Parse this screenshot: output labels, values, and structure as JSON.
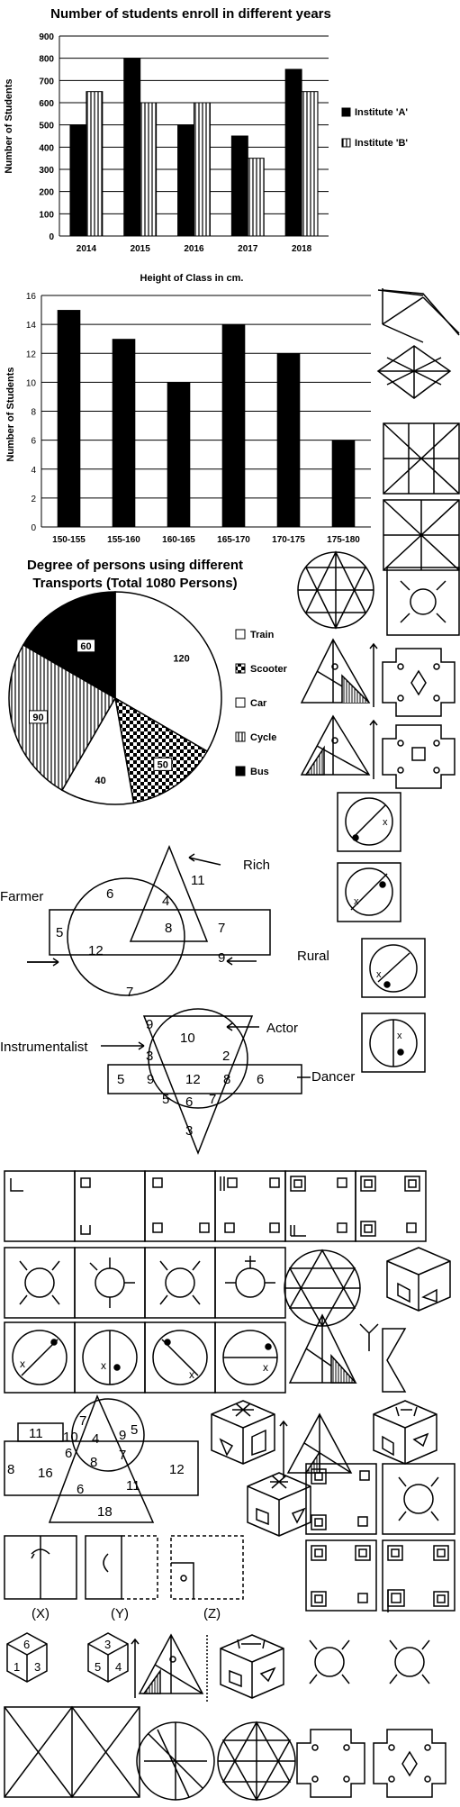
{
  "chart_data": [
    {
      "type": "bar",
      "title": "Number of students enroll in different years",
      "xlabel": "",
      "ylabel": "Number of Students",
      "categories": [
        "2014",
        "2015",
        "2016",
        "2017",
        "2018"
      ],
      "series": [
        {
          "name": "Institute 'A'",
          "values": [
            500,
            800,
            500,
            450,
            750
          ]
        },
        {
          "name": "Institute 'B'",
          "values": [
            650,
            600,
            600,
            350,
            650
          ]
        }
      ],
      "ylim": [
        0,
        900
      ],
      "yticks": [
        "0",
        "100",
        "200",
        "300",
        "400",
        "500",
        "600",
        "700",
        "800",
        "900"
      ],
      "grid": true,
      "legend": "right"
    },
    {
      "type": "bar",
      "title": "Height of Class in cm.",
      "xlabel": "",
      "ylabel": "Number of Students",
      "categories": [
        "150-155",
        "155-160",
        "160-165",
        "165-170",
        "170-175",
        "175-180"
      ],
      "values": [
        15,
        13,
        10,
        14,
        12,
        6
      ],
      "ylim": [
        0,
        16
      ],
      "yticks": [
        "0",
        "2",
        "4",
        "6",
        "8",
        "10",
        "12",
        "14",
        "16"
      ],
      "grid": true
    },
    {
      "type": "pie",
      "title": "Degree of persons using different Transports (Total 1080 Persons)",
      "labels": [
        "Train",
        "Scooter",
        "Car",
        "Cycle",
        "Bus"
      ],
      "values": [
        120,
        50,
        40,
        90,
        60
      ],
      "legend": "right"
    }
  ],
  "venn1": {
    "rich": "Rich",
    "farmer": "Farmer",
    "rural": "Rural",
    "nums": [
      "11",
      "6",
      "4",
      "8",
      "7",
      "5",
      "12",
      "9",
      "7"
    ]
  },
  "venn2": {
    "actor": "Actor",
    "instrumentalist": "Instrumentalist",
    "dancer": "Dancer",
    "nums": [
      "9",
      "10",
      "3",
      "2",
      "5",
      "9",
      "12",
      "8",
      "6",
      "5",
      "6",
      "7",
      "3"
    ]
  },
  "venn3": {
    "nums": [
      "7",
      "5",
      "9",
      "11",
      "10",
      "4",
      "6",
      "8",
      "7",
      "8",
      "16",
      "12",
      "6",
      "11",
      "18"
    ]
  },
  "paper_labels": [
    "(X)",
    "(Y)",
    "(Z)"
  ],
  "dice": [
    {
      "top": "6",
      "left": "1",
      "right": "3"
    },
    {
      "top": "3",
      "left": "5",
      "right": "4"
    }
  ]
}
